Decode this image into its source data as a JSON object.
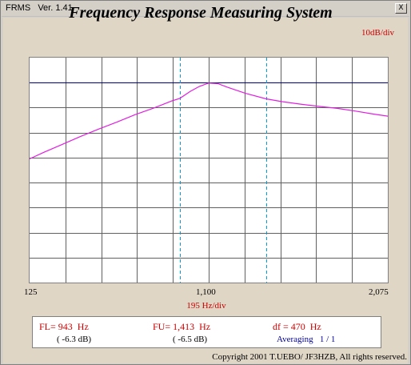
{
  "window": {
    "title": "FRMS   Ver. 1.41",
    "close_label": "X"
  },
  "app_title": "Frequency Response Measuring System",
  "y_scale_label": "10dB/div",
  "x_tick_labels": [
    "125",
    "1,100",
    "2,075"
  ],
  "x_scale_label": "195  Hz/div",
  "readouts": {
    "fl_label": "FL= 943  Hz",
    "fu_label": "FU= 1,413  Hz",
    "df_label": "df = 470  Hz",
    "fl_db": "( -6.3 dB)",
    "fu_db": "( -6.5 dB)",
    "averaging": "Averaging   1 / 1"
  },
  "copyright": "Copyright 2001 T.UEBO/ JF3HZB, All rights reserved.",
  "colors": {
    "response_curve": "#e020e0",
    "reference_line": "#000080",
    "marker_lines": "#00a0e0",
    "grid": "#606060",
    "accent_red": "#cc0000"
  },
  "chart_data": {
    "type": "line",
    "xlim": [
      125,
      2075
    ],
    "x_tick_step": 195,
    "y_step_db": 10,
    "y_divisions": 9,
    "reference_level_db": 0,
    "markers_hz": [
      943,
      1413
    ],
    "series": [
      {
        "x": [
          125,
          200,
          300,
          400,
          500,
          600,
          700,
          800,
          900,
          943,
          1000,
          1050,
          1100,
          1150,
          1200,
          1300,
          1413,
          1500,
          1600,
          1700,
          1800,
          1900,
          2000,
          2075
        ],
        "y": [
          -30.5,
          -28,
          -24.8,
          -21.6,
          -18.6,
          -15.8,
          -12.8,
          -10.2,
          -7.3,
          -6.3,
          -3.5,
          -1.5,
          -0.2,
          -0.4,
          -1.8,
          -4.3,
          -6.5,
          -7.6,
          -8.6,
          -9.5,
          -10.3,
          -11.4,
          -12.6,
          -13.4
        ]
      }
    ]
  }
}
